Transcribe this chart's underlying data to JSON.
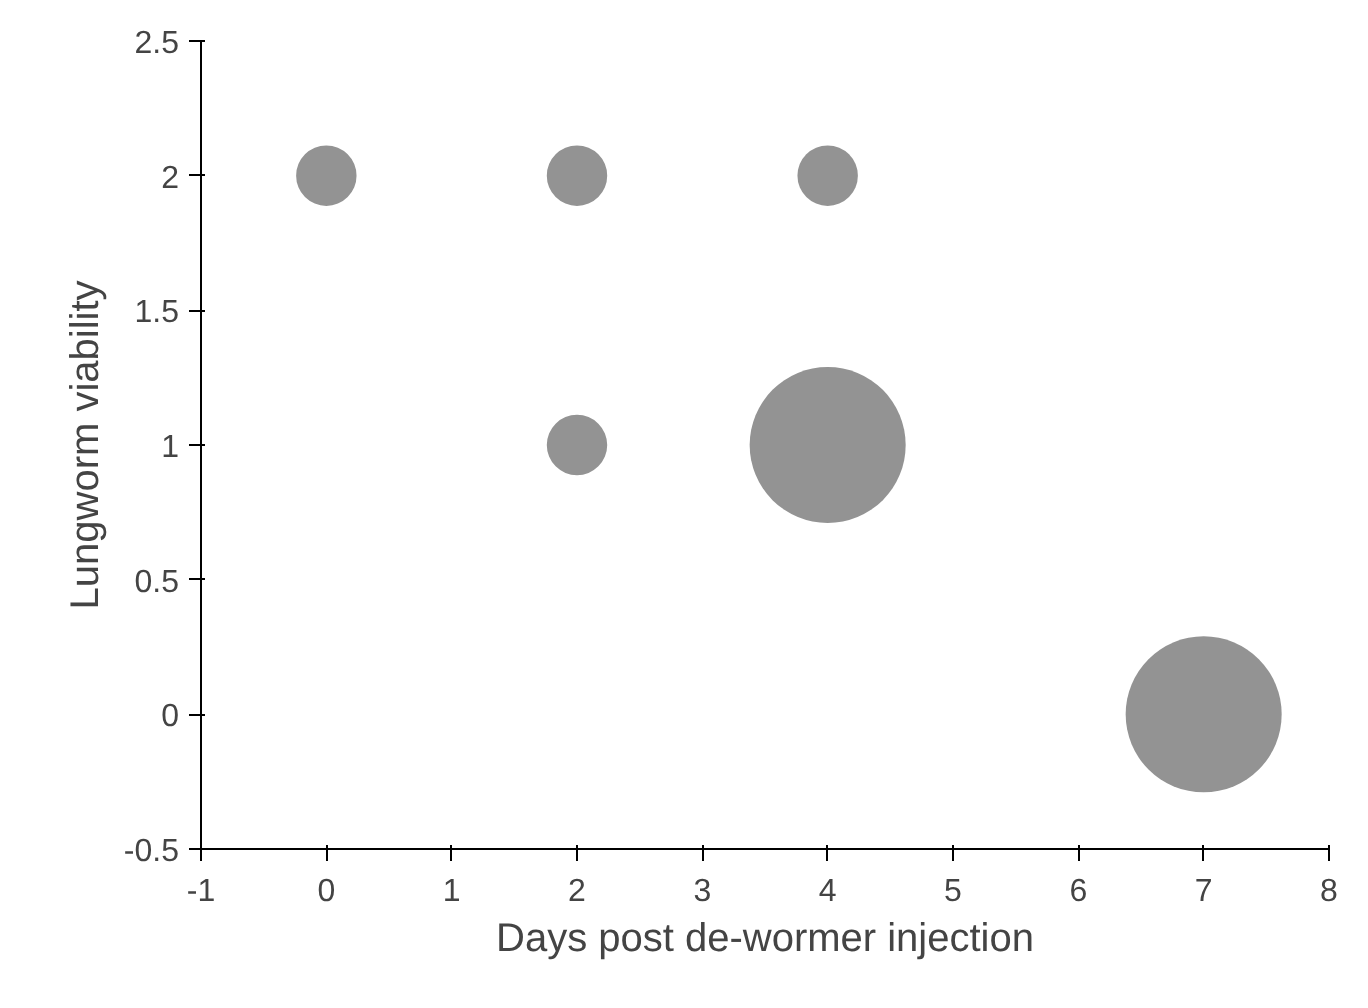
{
  "chart_data": {
    "type": "bubble",
    "xlabel": "Days post de-wormer injection",
    "ylabel": "Lungworm viability",
    "x": [
      0,
      2,
      4,
      2,
      4,
      7
    ],
    "values": [
      2,
      2,
      2,
      1,
      1,
      0
    ],
    "sizes": [
      0.15,
      0.15,
      0.15,
      0.15,
      1,
      1
    ],
    "color": "#939393",
    "xlim": [
      -1,
      8
    ],
    "xticks": [
      -1,
      0,
      1,
      2,
      3,
      4,
      5,
      6,
      7,
      8
    ],
    "ylim": [
      -0.5,
      2.5
    ],
    "yticks": [
      -0.5,
      0,
      0.5,
      1,
      1.5,
      2,
      2.5
    ],
    "grid": false
  }
}
